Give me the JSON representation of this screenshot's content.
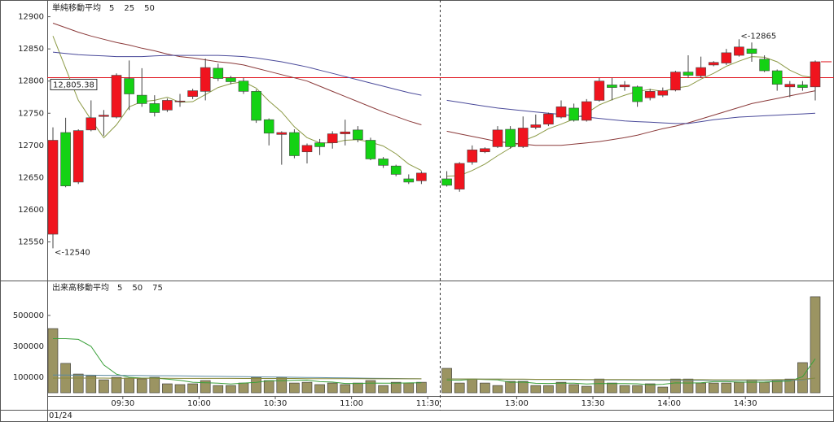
{
  "chart_data": [
    {
      "type": "candlestick",
      "title": "単純移動平均",
      "title_color": "#6e6e6e",
      "up_color": "#f0141e",
      "down_color": "#14d214",
      "open": [
        12562,
        12720,
        12643,
        12724,
        12745,
        12744,
        12804,
        12778,
        12765,
        12755,
        12768,
        12776,
        12784,
        12820,
        12805,
        12800,
        12784,
        12740,
        12717,
        12720,
        12690,
        12704,
        12704,
        12718,
        12724,
        12708,
        12679,
        12668,
        12648,
        12645,
        null,
        12648,
        12632,
        12674,
        12690,
        12698,
        12725,
        12698,
        12728,
        12733,
        12744,
        12758,
        12739,
        12770,
        12794,
        12791,
        12791,
        12774,
        12778,
        12786,
        12814,
        12808,
        12825,
        12828,
        12840,
        12850,
        12834,
        12816,
        12791,
        12794,
        12791
      ],
      "high": [
        12728,
        12743,
        12725,
        12770,
        12755,
        12812,
        12832,
        12820,
        12778,
        12773,
        12780,
        12788,
        12835,
        12827,
        12808,
        12805,
        12787,
        12742,
        12722,
        12725,
        12703,
        12710,
        12722,
        12740,
        12730,
        12712,
        12682,
        12670,
        12655,
        12660,
        null,
        12660,
        12674,
        12700,
        12697,
        12730,
        12730,
        12745,
        12748,
        12751,
        12770,
        12765,
        12772,
        12805,
        12805,
        12800,
        12793,
        12788,
        12790,
        12816,
        12840,
        12838,
        12831,
        12850,
        12865,
        12860,
        12840,
        12818,
        12800,
        12800,
        12832
      ],
      "low": [
        12540,
        12635,
        12640,
        12722,
        12715,
        12742,
        12755,
        12760,
        12745,
        12752,
        12760,
        12772,
        12770,
        12800,
        12795,
        12780,
        12735,
        12700,
        12670,
        12680,
        12672,
        12685,
        12695,
        12700,
        12705,
        12677,
        12665,
        12652,
        12640,
        12640,
        null,
        12636,
        12628,
        12670,
        12688,
        12696,
        12695,
        12696,
        12725,
        12730,
        12742,
        12737,
        12737,
        12768,
        12770,
        12785,
        12760,
        12770,
        12775,
        12784,
        12805,
        12805,
        12823,
        12825,
        12838,
        12830,
        12814,
        12785,
        12775,
        12785,
        12770
      ],
      "close": [
        12708,
        12637,
        12723,
        12743,
        12747,
        12809,
        12780,
        12765,
        12751,
        12770,
        12769,
        12785,
        12821,
        12804,
        12799,
        12784,
        12739,
        12719,
        12720,
        12684,
        12700,
        12698,
        12718,
        12721,
        12709,
        12679,
        12669,
        12655,
        12643,
        12657,
        null,
        12638,
        12672,
        12693,
        12695,
        12724,
        12698,
        12727,
        12732,
        12749,
        12760,
        12739,
        12768,
        12800,
        12790,
        12794,
        12768,
        12784,
        12785,
        12814,
        12809,
        12821,
        12829,
        12844,
        12853,
        12843,
        12816,
        12795,
        12795,
        12790,
        12830
      ],
      "series": [
        {
          "name": "5",
          "color": "#8c9a46",
          "values": [
            12870,
            12820,
            12770,
            12740,
            12712,
            12732,
            12760,
            12768,
            12770,
            12775,
            12767,
            12768,
            12779,
            12790,
            12796,
            12799,
            12789,
            12769,
            12752,
            12729,
            12712,
            12704,
            12704,
            12708,
            12709,
            12705,
            12699,
            12687,
            12671,
            12661,
            null,
            12652,
            12653,
            12661,
            12671,
            12684,
            12696,
            12707,
            12715,
            12726,
            12733,
            12741,
            12750,
            12763,
            12771,
            12778,
            12784,
            12787,
            12784,
            12789,
            12792,
            12803,
            12812,
            12823,
            12831,
            12838,
            12837,
            12830,
            12817,
            12808,
            12805
          ]
        },
        {
          "name": "25",
          "color": "#8b3a3a",
          "values": [
            12890,
            12883,
            12876,
            12870,
            12865,
            12860,
            12856,
            12851,
            12847,
            12842,
            12838,
            12836,
            12833,
            12830,
            12828,
            12825,
            12820,
            12815,
            12810,
            12805,
            12800,
            12792,
            12784,
            12776,
            12768,
            12760,
            12752,
            12745,
            12738,
            12732,
            null,
            12722,
            12718,
            12714,
            12710,
            12706,
            12704,
            12702,
            12700,
            12700,
            12700,
            12702,
            12704,
            12706,
            12709,
            12712,
            12716,
            12721,
            12726,
            12730,
            12735,
            12741,
            12747,
            12753,
            12759,
            12765,
            12769,
            12773,
            12777,
            12781,
            12785
          ]
        },
        {
          "name": "50",
          "color": "#4a4a9a",
          "values": [
            12845,
            12843,
            12841,
            12840,
            12839,
            12838,
            12838,
            12838,
            12839,
            12840,
            12840,
            12840,
            12840,
            12840,
            12839,
            12838,
            12836,
            12833,
            12830,
            12826,
            12822,
            12817,
            12812,
            12807,
            12802,
            12797,
            12792,
            12787,
            12782,
            12778,
            null,
            12770,
            12767,
            12764,
            12761,
            12758,
            12756,
            12754,
            12752,
            12750,
            12748,
            12746,
            12744,
            12742,
            12740,
            12738,
            12737,
            12736,
            12735,
            12734,
            12734,
            12737,
            12740,
            12742,
            12744,
            12745,
            12746,
            12747,
            12748,
            12749,
            12750
          ]
        }
      ],
      "reference_line": {
        "value": 12805.38,
        "label": "12,805.38",
        "color": "#e0141e"
      },
      "annotations": [
        {
          "label": "<-12865",
          "value": 12865,
          "color": "#e0141e"
        },
        {
          "label": "<-12540",
          "value": 12540,
          "color": "#14b414"
        }
      ],
      "ylim": [
        12490,
        12926
      ],
      "yticks": [
        12550,
        12600,
        12650,
        12700,
        12750,
        12800,
        12850,
        12900
      ]
    },
    {
      "type": "bar",
      "title": "出来高移動平均",
      "title_color": "#6e6e6e",
      "color": "#9b9462",
      "categories": [
        null,
        null,
        null,
        null,
        null,
        null,
        "09:30",
        null,
        null,
        null,
        null,
        null,
        "10:00",
        null,
        null,
        null,
        null,
        null,
        "10:30",
        null,
        null,
        null,
        null,
        null,
        "11:00",
        null,
        null,
        null,
        null,
        null,
        "11:30",
        null,
        null,
        null,
        null,
        null,
        null,
        "13:00",
        null,
        null,
        null,
        null,
        null,
        "13:30",
        null,
        null,
        null,
        null,
        null,
        "14:00",
        null,
        null,
        null,
        null,
        null,
        "14:30",
        null,
        null,
        null,
        null,
        null
      ],
      "values": [
        415000,
        190000,
        121000,
        110000,
        84000,
        100000,
        95000,
        90000,
        100000,
        58000,
        53000,
        58000,
        79000,
        47000,
        47000,
        63000,
        100000,
        79000,
        100000,
        63000,
        68000,
        53000,
        63000,
        53000,
        63000,
        79000,
        47000,
        68000,
        63000,
        68000,
        null,
        158000,
        63000,
        89000,
        63000,
        47000,
        74000,
        74000,
        47000,
        47000,
        68000,
        53000,
        42000,
        89000,
        63000,
        47000,
        47000,
        58000,
        37000,
        89000,
        89000,
        63000,
        63000,
        63000,
        68000,
        84000,
        68000,
        84000,
        89000,
        195000,
        621000
      ],
      "series": [
        {
          "name": "5",
          "color": "#3aa03a",
          "values": [
            350000,
            350000,
            345000,
            300000,
            180000,
            120000,
            100000,
            95000,
            95000,
            88000,
            80000,
            68000,
            65000,
            62000,
            57000,
            63000,
            67000,
            78000,
            78000,
            80000,
            82000,
            72000,
            69000,
            60000,
            60000,
            63000,
            62000,
            62000,
            64000,
            65000,
            null,
            83000,
            80000,
            88000,
            86000,
            84000,
            67000,
            69000,
            61000,
            60000,
            62000,
            62000,
            57000,
            60000,
            59000,
            59000,
            58000,
            51000,
            55000,
            64000,
            63000,
            65000,
            72000,
            72000,
            69000,
            68000,
            69000,
            73000,
            76000,
            104000,
            220000
          ]
        },
        {
          "name": "50",
          "color": "#5a8aa0",
          "values": [
            115000,
            115000,
            114000,
            114000,
            113000,
            113000,
            112000,
            111000,
            110000,
            110000,
            109000,
            108000,
            107000,
            106000,
            105000,
            104000,
            103000,
            102000,
            101000,
            100000,
            99000,
            98000,
            97000,
            96000,
            95000,
            94000,
            93000,
            92000,
            91000,
            90000,
            null,
            90000,
            89000,
            89000,
            88000,
            88000,
            87000,
            87000,
            86000,
            86000,
            85000,
            85000,
            84000,
            84000,
            83000,
            83000,
            82000,
            82000,
            81000,
            81000,
            80000,
            80000,
            80000,
            80000,
            80000,
            80000,
            80000,
            80000,
            81000,
            84000,
            95000
          ]
        },
        {
          "name": "75",
          "color": "#8a8a3a",
          "values": [
            95000,
            95000,
            95000,
            95000,
            95000,
            94000,
            94000,
            94000,
            94000,
            94000,
            93000,
            93000,
            93000,
            93000,
            93000,
            92000,
            92000,
            92000,
            92000,
            92000,
            91000,
            91000,
            91000,
            91000,
            91000,
            90000,
            90000,
            90000,
            90000,
            90000,
            null,
            89000,
            89000,
            89000,
            88000,
            88000,
            88000,
            88000,
            87000,
            87000,
            87000,
            87000,
            86000,
            86000,
            86000,
            86000,
            85000,
            85000,
            85000,
            85000,
            85000,
            85000,
            84000,
            84000,
            84000,
            84000,
            84000,
            85000,
            85000,
            87000,
            95000
          ]
        }
      ],
      "date_label": "01/24",
      "ylim": [
        -5000,
        710000
      ],
      "yticks": [
        100000,
        300000,
        500000
      ]
    }
  ]
}
